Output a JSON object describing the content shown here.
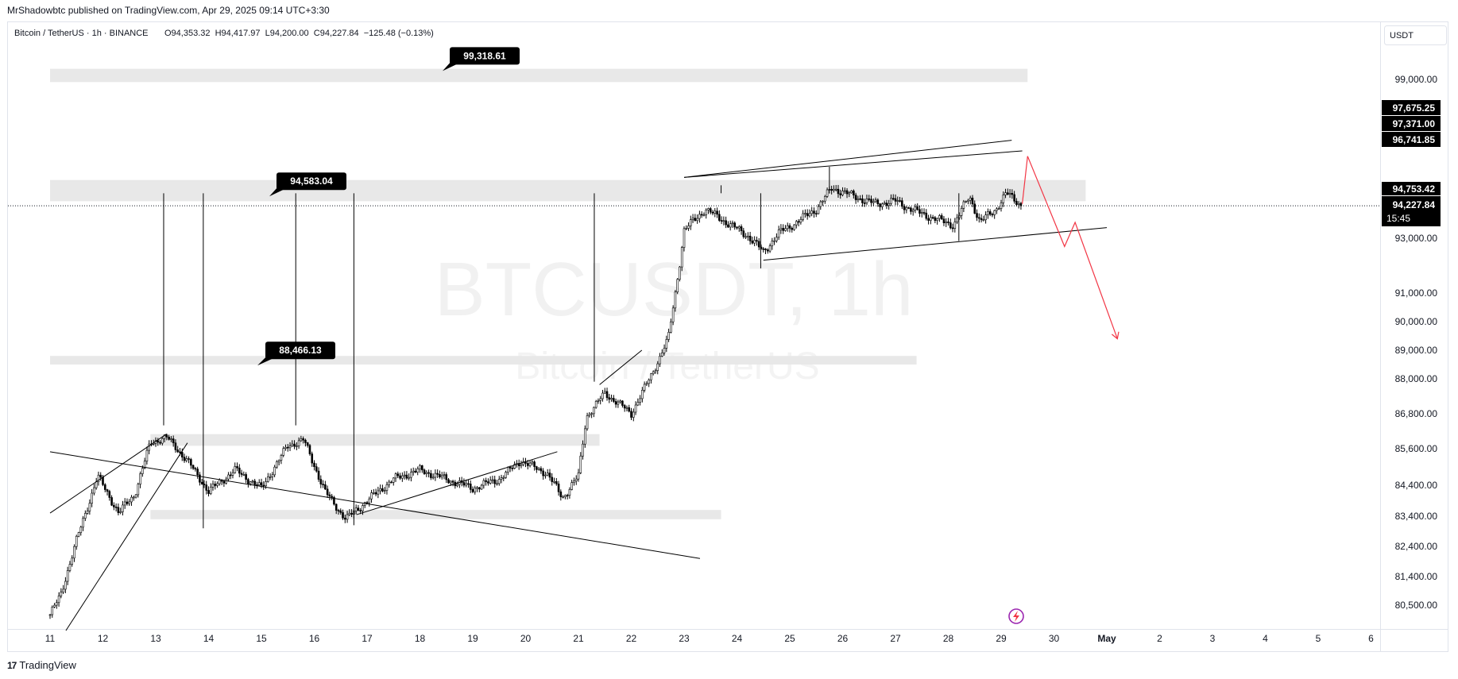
{
  "credit": "MrShadowbtc published on TradingView.com, Apr 29, 2025 09:14 UTC+3:30",
  "header": {
    "symbol": "Bitcoin / TetherUS · 1h · BINANCE",
    "ohlc": "O94,353.32  H94,417.97  L94,200.00  C94,227.84  −125.48 (−0.13%)",
    "currency": "USDT"
  },
  "watermark": {
    "line1": "BTCUSDT, 1h",
    "line2": "Bitcoin / TetherUS"
  },
  "footer": {
    "brand": "TradingView",
    "logo": "17"
  },
  "colors": {
    "projection": "#f23645",
    "zone": "#e8e8e8",
    "text": "#131722",
    "label_bg": "#000000"
  },
  "icons": {
    "lightning": "lightning-icon"
  },
  "chart_data": {
    "type": "candlestick",
    "title": "BTCUSDT, 1h",
    "xlabel": "",
    "ylabel": "",
    "x_ticks": [
      "11",
      "12",
      "13",
      "14",
      "15",
      "16",
      "17",
      "18",
      "19",
      "20",
      "21",
      "22",
      "23",
      "24",
      "25",
      "26",
      "27",
      "28",
      "29",
      "30",
      "May",
      "2",
      "3",
      "4",
      "5",
      "6"
    ],
    "y_ticks": [
      "99,000.00",
      "93,000.00",
      "91,000.00",
      "90,000.00",
      "89,000.00",
      "88,000.00",
      "86,800.00",
      "85,600.00",
      "84,400.00",
      "83,400.00",
      "82,400.00",
      "81,400.00",
      "80,500.00"
    ],
    "y_tick_values": [
      99000,
      93000,
      91000,
      90000,
      89000,
      88000,
      86800,
      85600,
      84400,
      83400,
      82400,
      81400,
      80500
    ],
    "price_labels": [
      {
        "text": "97,675.25",
        "value": 97675.25
      },
      {
        "text": "97,371.00",
        "value": 97371.0
      },
      {
        "text": "96,741.85",
        "value": 96741.85
      },
      {
        "text": "94,753.42",
        "value": 94753.42
      },
      {
        "text": "94,227.84",
        "value": 94227.84
      }
    ],
    "countdown": "15:45",
    "current_price": 94227.84,
    "level_callouts": [
      {
        "text": "99,318.61",
        "value": 99318.61
      },
      {
        "text": "94,583.04",
        "value": 94583.04
      },
      {
        "text": "88,466.13",
        "value": 88466.13
      }
    ],
    "zones": [
      {
        "from_day": 11.0,
        "to_day": 29.5,
        "low": 98900,
        "high": 99400
      },
      {
        "from_day": 11.0,
        "to_day": 30.6,
        "low": 94400,
        "high": 95200
      },
      {
        "from_day": 11.0,
        "to_day": 27.4,
        "low": 88500,
        "high": 88800
      },
      {
        "from_day": 12.9,
        "to_day": 21.4,
        "low": 85700,
        "high": 86100
      },
      {
        "from_day": 12.9,
        "to_day": 23.7,
        "low": 83300,
        "high": 83600
      }
    ],
    "trendlines": [
      {
        "x1": 11.0,
        "y1": 83500,
        "x2": 13.2,
        "y2": 86100
      },
      {
        "x1": 11.3,
        "y1": 79700,
        "x2": 13.6,
        "y2": 85800
      },
      {
        "x1": 11.0,
        "y1": 85500,
        "x2": 23.3,
        "y2": 82000
      },
      {
        "x1": 16.8,
        "y1": 83450,
        "x2": 20.6,
        "y2": 85500
      },
      {
        "x1": 21.4,
        "y1": 87800,
        "x2": 22.2,
        "y2": 89000
      },
      {
        "x1": 23.0,
        "y1": 95300,
        "x2": 29.2,
        "y2": 96700
      },
      {
        "x1": 23.0,
        "y1": 95300,
        "x2": 29.4,
        "y2": 96300
      },
      {
        "x1": 24.5,
        "y1": 92200,
        "x2": 31.0,
        "y2": 93400
      }
    ],
    "projection_path": [
      {
        "x": 29.4,
        "y": 94300
      },
      {
        "x": 29.5,
        "y": 96100
      },
      {
        "x": 30.2,
        "y": 92700
      },
      {
        "x": 30.4,
        "y": 93600
      },
      {
        "x": 31.2,
        "y": 89400
      }
    ],
    "anchors": [
      {
        "x": 11.0,
        "y": 80200
      },
      {
        "x": 11.2,
        "y": 80800
      },
      {
        "x": 11.5,
        "y": 82600
      },
      {
        "x": 11.9,
        "y": 84700
      },
      {
        "x": 12.3,
        "y": 83500
      },
      {
        "x": 12.6,
        "y": 84100
      },
      {
        "x": 12.9,
        "y": 85800
      },
      {
        "x": 13.2,
        "y": 86000
      },
      {
        "x": 13.6,
        "y": 85200
      },
      {
        "x": 14.0,
        "y": 84200
      },
      {
        "x": 14.5,
        "y": 84900
      },
      {
        "x": 15.0,
        "y": 84300
      },
      {
        "x": 15.5,
        "y": 85700
      },
      {
        "x": 15.8,
        "y": 85900
      },
      {
        "x": 16.2,
        "y": 84200
      },
      {
        "x": 16.6,
        "y": 83300
      },
      {
        "x": 17.0,
        "y": 83900
      },
      {
        "x": 17.5,
        "y": 84600
      },
      {
        "x": 18.0,
        "y": 84900
      },
      {
        "x": 18.5,
        "y": 84600
      },
      {
        "x": 19.0,
        "y": 84300
      },
      {
        "x": 19.5,
        "y": 84600
      },
      {
        "x": 19.9,
        "y": 85200
      },
      {
        "x": 20.4,
        "y": 84800
      },
      {
        "x": 20.7,
        "y": 84000
      },
      {
        "x": 21.0,
        "y": 84700
      },
      {
        "x": 21.15,
        "y": 86700
      },
      {
        "x": 21.5,
        "y": 87500
      },
      {
        "x": 21.8,
        "y": 87100
      },
      {
        "x": 22.0,
        "y": 86800
      },
      {
        "x": 22.4,
        "y": 88200
      },
      {
        "x": 22.7,
        "y": 89400
      },
      {
        "x": 22.85,
        "y": 91200
      },
      {
        "x": 23.0,
        "y": 93300
      },
      {
        "x": 23.4,
        "y": 94100
      },
      {
        "x": 23.8,
        "y": 93600
      },
      {
        "x": 24.2,
        "y": 93100
      },
      {
        "x": 24.5,
        "y": 92500
      },
      {
        "x": 24.8,
        "y": 93200
      },
      {
        "x": 25.2,
        "y": 93700
      },
      {
        "x": 25.5,
        "y": 94100
      },
      {
        "x": 25.8,
        "y": 94900
      },
      {
        "x": 26.2,
        "y": 94600
      },
      {
        "x": 26.6,
        "y": 94300
      },
      {
        "x": 27.0,
        "y": 94400
      },
      {
        "x": 27.4,
        "y": 94000
      },
      {
        "x": 27.8,
        "y": 93700
      },
      {
        "x": 28.1,
        "y": 93500
      },
      {
        "x": 28.4,
        "y": 94600
      },
      {
        "x": 28.6,
        "y": 93600
      },
      {
        "x": 28.9,
        "y": 94100
      },
      {
        "x": 29.1,
        "y": 94700
      },
      {
        "x": 29.4,
        "y": 94228
      }
    ],
    "spikes": [
      {
        "x": 13.15,
        "high": 86400
      },
      {
        "x": 15.65,
        "high": 86400
      },
      {
        "x": 21.3,
        "high": 87900
      },
      {
        "x": 23.7,
        "high": 95000
      },
      {
        "x": 25.75,
        "high": 95700
      },
      {
        "x": 24.45,
        "low": 91900
      },
      {
        "x": 16.75,
        "low": 83100
      },
      {
        "x": 13.9,
        "low": 83000
      },
      {
        "x": 28.2,
        "low": 92900
      }
    ]
  }
}
